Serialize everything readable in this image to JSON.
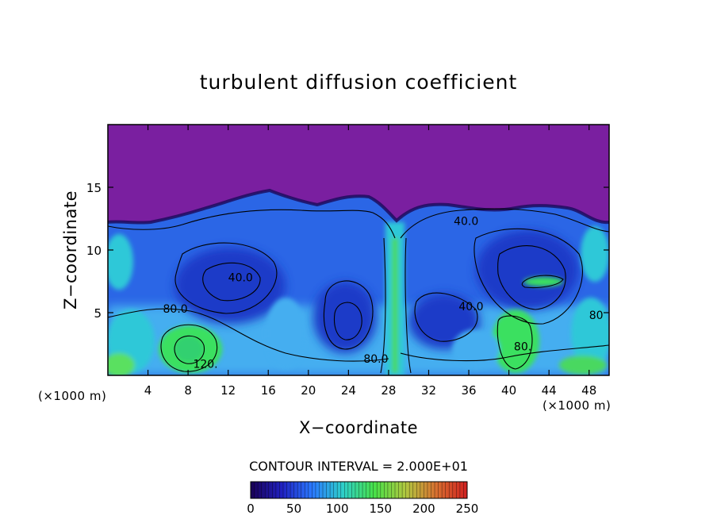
{
  "chart_data": {
    "type": "heatmap",
    "title": "turbulent diffusion coefficient",
    "xlabel": "X−coordinate",
    "ylabel": "Z−coordinate",
    "x_units": "(×1000 m)",
    "y_units": "(×1000 m)",
    "xlim": [
      0,
      50
    ],
    "ylim": [
      0,
      20
    ],
    "x_ticks": [
      4,
      8,
      12,
      16,
      20,
      24,
      28,
      32,
      36,
      40,
      44,
      48
    ],
    "y_ticks": [
      5,
      10,
      15
    ],
    "contour_interval_text": "CONTOUR INTERVAL = 2.000E+01",
    "contour_labels": [
      {
        "text": "40.0",
        "x": 12.0,
        "z": 7.5
      },
      {
        "text": "80.0",
        "x": 5.5,
        "z": 5.0
      },
      {
        "text": "120.",
        "x": 8.5,
        "z": 0.6
      },
      {
        "text": "80.0",
        "x": 25.5,
        "z": 1.0
      },
      {
        "text": "40.0",
        "x": 35.0,
        "z": 5.2
      },
      {
        "text": "40.0",
        "x": 34.5,
        "z": 12.0
      },
      {
        "text": "80.",
        "x": 40.5,
        "z": 2.0
      },
      {
        "text": "80",
        "x": 48.0,
        "z": 4.5
      }
    ],
    "colorbar": {
      "min": 0,
      "max": 250,
      "ticks": [
        "0",
        "50",
        "100",
        "150",
        "200",
        "250"
      ],
      "colormap": [
        "#1a0055",
        "#2020c0",
        "#2a7aff",
        "#2ed0c8",
        "#48e048",
        "#b0c840",
        "#d87030",
        "#d02020"
      ]
    },
    "colors": {
      "top_layer": "#7a1fa0",
      "flow_blue": "#2b66e6",
      "core_blue": "#1c3ac8",
      "light_blue": "#44aef0",
      "cyan": "#2ec8d8",
      "green": "#3ae060"
    }
  }
}
